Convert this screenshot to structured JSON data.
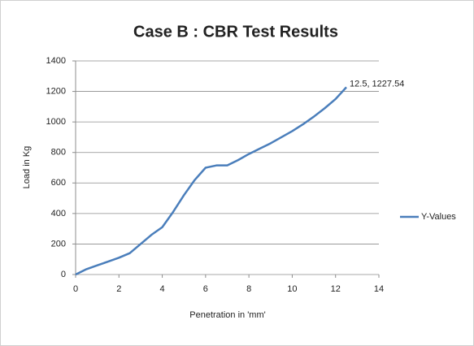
{
  "chart_data": {
    "type": "line",
    "title": "Case B : CBR Test Results",
    "xlabel": "Penetration in 'mm'",
    "ylabel": "Load in Kg",
    "x": [
      0,
      0.5,
      1,
      1.5,
      2,
      2.5,
      3,
      3.5,
      4,
      4.5,
      5,
      5.5,
      6,
      6.5,
      7,
      7.5,
      8,
      8.5,
      9,
      9.5,
      10,
      10.5,
      11,
      11.5,
      12,
      12.5
    ],
    "series": [
      {
        "name": "Y-Values",
        "color": "#4a7ebb",
        "values": [
          0,
          35,
          60,
          85,
          110,
          140,
          200,
          260,
          310,
          410,
          520,
          620,
          700,
          715,
          715,
          750,
          790,
          825,
          860,
          900,
          940,
          985,
          1035,
          1090,
          1150,
          1227.54
        ],
        "value_labels": [
          null,
          null,
          null,
          null,
          null,
          null,
          null,
          null,
          null,
          null,
          null,
          null,
          null,
          null,
          null,
          null,
          null,
          null,
          null,
          null,
          null,
          null,
          null,
          null,
          null,
          "12.5, 1227.54"
        ]
      }
    ],
    "xlim": [
      0,
      14
    ],
    "xticks": [
      0,
      2,
      4,
      6,
      8,
      10,
      12,
      14
    ],
    "ylim": [
      0,
      1400
    ],
    "yticks": [
      0,
      200,
      400,
      600,
      800,
      1000,
      1200,
      1400
    ],
    "grid": true,
    "legend": "right"
  }
}
